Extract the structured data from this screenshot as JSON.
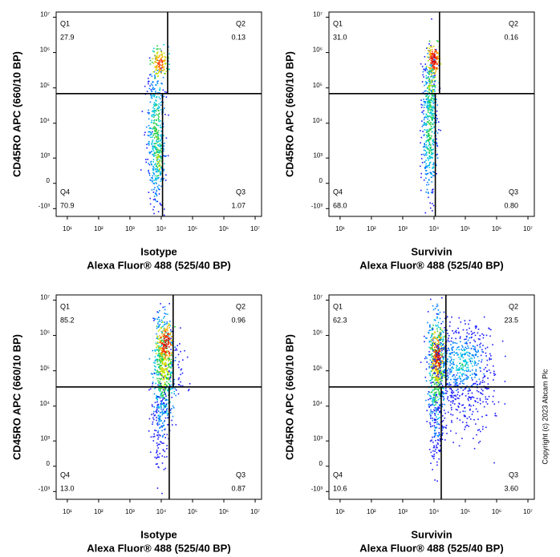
{
  "chart_data": [
    {
      "type": "scatter",
      "x_label": [
        "Isotype",
        "Alexa Fluor® 488  (525/40 BP)"
      ],
      "y_label": "CD45RO APC (660/10 BP)",
      "xscale": "log",
      "yscale": "biexponential",
      "xlim": [
        4.4,
        16000000
      ],
      "ylim": [
        -1700,
        14000000
      ],
      "xticks": [
        {
          "value": 10,
          "label": "10¹"
        },
        {
          "value": 100,
          "label": "10²"
        },
        {
          "value": 1000,
          "label": "10³"
        },
        {
          "value": 10000,
          "label": "10⁴"
        },
        {
          "value": 100000,
          "label": "10⁵"
        },
        {
          "value": 1000000,
          "label": "10⁶"
        },
        {
          "value": 10000000,
          "label": "10⁷"
        }
      ],
      "yticks": [
        {
          "value": -1000,
          "label": "-10³"
        },
        0,
        {
          "value": 1000,
          "label": "10³"
        },
        {
          "value": 10000,
          "label": "10⁴"
        },
        {
          "value": 100000,
          "label": "10⁵"
        },
        {
          "value": 1000000,
          "label": "10⁶"
        },
        {
          "value": 10000000,
          "label": "10⁷"
        }
      ],
      "gate": {
        "x_upper": 16000,
        "x_lower": 11000,
        "y": 69000
      },
      "quadrants": [
        {
          "name": "Q1",
          "value": "27.9"
        },
        {
          "name": "Q2",
          "value": "0.13"
        },
        {
          "name": "Q3",
          "value": "1.07"
        },
        {
          "name": "Q4",
          "value": "70.9"
        }
      ]
    },
    {
      "type": "scatter",
      "x_label": [
        "Survivin",
        "Alexa Fluor® 488  (525/40 BP)"
      ],
      "y_label": "CD45RO APC (660/10 BP)",
      "xscale": "log",
      "yscale": "biexponential",
      "xlim": [
        4.4,
        16000000
      ],
      "ylim": [
        -1700,
        14000000
      ],
      "xticks": [
        {
          "value": 10,
          "label": "10¹"
        },
        {
          "value": 100,
          "label": "10²"
        },
        {
          "value": 1000,
          "label": "10³"
        },
        {
          "value": 10000,
          "label": "10⁴"
        },
        {
          "value": 100000,
          "label": "10⁵"
        },
        {
          "value": 1000000,
          "label": "10⁶"
        },
        {
          "value": 10000000,
          "label": "10⁷"
        }
      ],
      "yticks": [
        {
          "value": -1000,
          "label": "-10³"
        },
        0,
        {
          "value": 1000,
          "label": "10³"
        },
        {
          "value": 10000,
          "label": "10⁴"
        },
        {
          "value": 100000,
          "label": "10⁵"
        },
        {
          "value": 1000000,
          "label": "10⁶"
        },
        {
          "value": 10000000,
          "label": "10⁷"
        }
      ],
      "gate": {
        "x_upper": 15000,
        "x_lower": 11000,
        "y": 69000
      },
      "quadrants": [
        {
          "name": "Q1",
          "value": "31.0"
        },
        {
          "name": "Q2",
          "value": "0.16"
        },
        {
          "name": "Q3",
          "value": "0.80"
        },
        {
          "name": "Q4",
          "value": "68.0"
        }
      ]
    },
    {
      "type": "scatter",
      "x_label": [
        "Isotype",
        "Alexa Fluor® 488  (525/40 BP)"
      ],
      "y_label": "CD45RO APC (660/10 BP)",
      "xscale": "log",
      "yscale": "biexponential",
      "xlim": [
        4.4,
        16000000
      ],
      "ylim": [
        -1700,
        14000000
      ],
      "xticks": [
        {
          "value": 10,
          "label": "10¹"
        },
        {
          "value": 100,
          "label": "10²"
        },
        {
          "value": 1000,
          "label": "10³"
        },
        {
          "value": 10000,
          "label": "10⁴"
        },
        {
          "value": 100000,
          "label": "10⁵"
        },
        {
          "value": 1000000,
          "label": "10⁶"
        },
        {
          "value": 10000000,
          "label": "10⁷"
        }
      ],
      "yticks": [
        {
          "value": -1000,
          "label": "-10³"
        },
        0,
        {
          "value": 1000,
          "label": "10³"
        },
        {
          "value": 10000,
          "label": "10⁴"
        },
        {
          "value": 100000,
          "label": "10⁵"
        },
        {
          "value": 1000000,
          "label": "10⁶"
        },
        {
          "value": 10000000,
          "label": "10⁷"
        }
      ],
      "gate": {
        "x_upper": 24000,
        "x_lower": 18000,
        "y": 35000
      },
      "quadrants": [
        {
          "name": "Q1",
          "value": "85.2"
        },
        {
          "name": "Q2",
          "value": "0.96"
        },
        {
          "name": "Q3",
          "value": "0.87"
        },
        {
          "name": "Q4",
          "value": "13.0"
        }
      ]
    },
    {
      "type": "scatter",
      "x_label": [
        "Survivin",
        "Alexa Fluor® 488  (525/40 BP)"
      ],
      "y_label": "CD45RO APC (660/10 BP)",
      "xscale": "log",
      "yscale": "biexponential",
      "xlim": [
        4.4,
        16000000
      ],
      "ylim": [
        -1700,
        14000000
      ],
      "xticks": [
        {
          "value": 10,
          "label": "10¹"
        },
        {
          "value": 100,
          "label": "10²"
        },
        {
          "value": 1000,
          "label": "10³"
        },
        {
          "value": 10000,
          "label": "10⁴"
        },
        {
          "value": 100000,
          "label": "10⁵"
        },
        {
          "value": 1000000,
          "label": "10⁶"
        },
        {
          "value": 10000000,
          "label": "10⁷"
        }
      ],
      "yticks": [
        {
          "value": -1000,
          "label": "-10³"
        },
        0,
        {
          "value": 1000,
          "label": "10³"
        },
        {
          "value": 10000,
          "label": "10⁴"
        },
        {
          "value": 100000,
          "label": "10⁵"
        },
        {
          "value": 1000000,
          "label": "10⁶"
        },
        {
          "value": 10000000,
          "label": "10⁷"
        }
      ],
      "gate": {
        "x_upper": 24000,
        "x_lower": 17000,
        "y": 35000
      },
      "quadrants": [
        {
          "name": "Q1",
          "value": "62.3"
        },
        {
          "name": "Q2",
          "value": "23.5"
        },
        {
          "name": "Q3",
          "value": "3.60"
        },
        {
          "name": "Q4",
          "value": "10.6"
        }
      ]
    }
  ],
  "copyright": "Copyright (c) 2023 Abcam Plc"
}
